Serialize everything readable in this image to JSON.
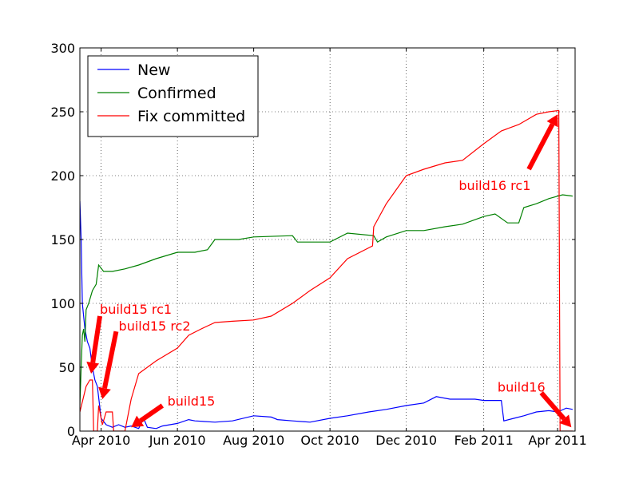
{
  "chart_data": {
    "type": "line",
    "title": "",
    "xlabel": "",
    "ylabel": "",
    "xlim": [
      "2010-03-15",
      "2011-04-15"
    ],
    "ylim": [
      0,
      300
    ],
    "grid": true,
    "legend_position": "top-left",
    "x_ticks": [
      {
        "date": "2010-04-01",
        "label": "Apr 2010"
      },
      {
        "date": "2010-06-01",
        "label": "Jun 2010"
      },
      {
        "date": "2010-08-01",
        "label": "Aug 2010"
      },
      {
        "date": "2010-10-01",
        "label": "Oct 2010"
      },
      {
        "date": "2010-12-01",
        "label": "Dec 2010"
      },
      {
        "date": "2011-02-01",
        "label": "Feb 2011"
      },
      {
        "date": "2011-04-01",
        "label": "Apr 2011"
      }
    ],
    "y_ticks": [
      0,
      50,
      100,
      150,
      200,
      250,
      300
    ],
    "series": [
      {
        "name": "New",
        "color": "#0000ff",
        "points": [
          [
            "2010-03-15",
            180
          ],
          [
            "2010-03-16",
            150
          ],
          [
            "2010-03-17",
            100
          ],
          [
            "2010-03-19",
            80
          ],
          [
            "2010-03-21",
            70
          ],
          [
            "2010-03-23",
            65
          ],
          [
            "2010-03-25",
            50
          ],
          [
            "2010-03-27",
            40
          ],
          [
            "2010-03-29",
            35
          ],
          [
            "2010-04-01",
            10
          ],
          [
            "2010-04-05",
            5
          ],
          [
            "2010-04-10",
            3
          ],
          [
            "2010-04-15",
            5
          ],
          [
            "2010-04-20",
            3
          ],
          [
            "2010-04-25",
            4
          ],
          [
            "2010-05-01",
            2
          ],
          [
            "2010-05-05",
            10
          ],
          [
            "2010-05-08",
            3
          ],
          [
            "2010-05-15",
            2
          ],
          [
            "2010-05-20",
            4
          ],
          [
            "2010-06-01",
            6
          ],
          [
            "2010-06-10",
            9
          ],
          [
            "2010-06-15",
            8
          ],
          [
            "2010-07-01",
            7
          ],
          [
            "2010-07-15",
            8
          ],
          [
            "2010-08-01",
            12
          ],
          [
            "2010-08-15",
            11
          ],
          [
            "2010-08-20",
            9
          ],
          [
            "2010-09-01",
            8
          ],
          [
            "2010-09-15",
            7
          ],
          [
            "2010-10-01",
            10
          ],
          [
            "2010-10-15",
            12
          ],
          [
            "2010-11-01",
            15
          ],
          [
            "2010-11-15",
            17
          ],
          [
            "2010-12-01",
            20
          ],
          [
            "2010-12-15",
            22
          ],
          [
            "2010-12-25",
            27
          ],
          [
            "2011-01-05",
            25
          ],
          [
            "2011-01-15",
            25
          ],
          [
            "2011-01-25",
            25
          ],
          [
            "2011-02-01",
            24
          ],
          [
            "2011-02-15",
            24
          ],
          [
            "2011-02-17",
            8
          ],
          [
            "2011-02-25",
            10
          ],
          [
            "2011-03-05",
            12
          ],
          [
            "2011-03-15",
            15
          ],
          [
            "2011-03-25",
            16
          ],
          [
            "2011-04-01",
            15
          ],
          [
            "2011-04-08",
            18
          ],
          [
            "2011-04-13",
            17
          ]
        ]
      },
      {
        "name": "Confirmed",
        "color": "#008000",
        "points": [
          [
            "2010-03-15",
            20
          ],
          [
            "2010-03-16",
            50
          ],
          [
            "2010-03-17",
            75
          ],
          [
            "2010-03-18",
            80
          ],
          [
            "2010-03-19",
            70
          ],
          [
            "2010-03-20",
            95
          ],
          [
            "2010-03-22",
            100
          ],
          [
            "2010-03-25",
            110
          ],
          [
            "2010-03-28",
            115
          ],
          [
            "2010-03-30",
            130
          ],
          [
            "2010-04-03",
            125
          ],
          [
            "2010-04-10",
            125
          ],
          [
            "2010-04-20",
            127
          ],
          [
            "2010-05-01",
            130
          ],
          [
            "2010-05-15",
            135
          ],
          [
            "2010-06-01",
            140
          ],
          [
            "2010-06-15",
            140
          ],
          [
            "2010-06-25",
            142
          ],
          [
            "2010-07-01",
            150
          ],
          [
            "2010-07-20",
            150
          ],
          [
            "2010-08-01",
            152
          ],
          [
            "2010-09-01",
            153
          ],
          [
            "2010-09-05",
            148
          ],
          [
            "2010-09-15",
            148
          ],
          [
            "2010-10-01",
            148
          ],
          [
            "2010-10-15",
            155
          ],
          [
            "2010-11-05",
            153
          ],
          [
            "2010-11-08",
            148
          ],
          [
            "2010-11-15",
            152
          ],
          [
            "2010-12-01",
            157
          ],
          [
            "2010-12-15",
            157
          ],
          [
            "2011-01-01",
            160
          ],
          [
            "2011-01-15",
            162
          ],
          [
            "2011-02-01",
            168
          ],
          [
            "2011-02-10",
            170
          ],
          [
            "2011-02-20",
            163
          ],
          [
            "2011-03-01",
            163
          ],
          [
            "2011-03-05",
            175
          ],
          [
            "2011-03-15",
            178
          ],
          [
            "2011-03-25",
            182
          ],
          [
            "2011-04-05",
            185
          ],
          [
            "2011-04-13",
            184
          ]
        ]
      },
      {
        "name": "Fix committed",
        "color": "#ff0000",
        "points": [
          [
            "2010-03-15",
            15
          ],
          [
            "2010-03-20",
            35
          ],
          [
            "2010-03-23",
            40
          ],
          [
            "2010-03-25",
            40
          ],
          [
            "2010-03-26",
            0
          ],
          [
            "2010-03-29",
            0
          ],
          [
            "2010-03-30",
            20
          ],
          [
            "2010-04-02",
            5
          ],
          [
            "2010-04-05",
            15
          ],
          [
            "2010-04-10",
            15
          ],
          [
            "2010-04-11",
            0
          ],
          [
            "2010-04-20",
            0
          ],
          [
            "2010-04-25",
            25
          ],
          [
            "2010-05-01",
            45
          ],
          [
            "2010-05-15",
            55
          ],
          [
            "2010-06-01",
            65
          ],
          [
            "2010-06-10",
            75
          ],
          [
            "2010-06-20",
            80
          ],
          [
            "2010-07-01",
            85
          ],
          [
            "2010-07-15",
            86
          ],
          [
            "2010-08-01",
            87
          ],
          [
            "2010-08-15",
            90
          ],
          [
            "2010-09-01",
            100
          ],
          [
            "2010-09-15",
            110
          ],
          [
            "2010-10-01",
            120
          ],
          [
            "2010-10-15",
            135
          ],
          [
            "2010-11-04",
            145
          ],
          [
            "2010-11-05",
            160
          ],
          [
            "2010-11-15",
            178
          ],
          [
            "2010-12-01",
            200
          ],
          [
            "2010-12-15",
            205
          ],
          [
            "2011-01-01",
            210
          ],
          [
            "2011-01-15",
            212
          ],
          [
            "2011-02-01",
            225
          ],
          [
            "2011-02-15",
            235
          ],
          [
            "2011-03-01",
            240
          ],
          [
            "2011-03-15",
            248
          ],
          [
            "2011-03-25",
            250
          ],
          [
            "2011-04-02",
            251
          ],
          [
            "2011-04-03",
            0
          ],
          [
            "2011-04-13",
            0
          ]
        ]
      }
    ],
    "annotations": [
      {
        "text": "build15 rc1",
        "color": "#ff0000",
        "text_at": [
          "2010-03-31",
          95
        ],
        "arrow_from": [
          "2010-03-31",
          90
        ],
        "arrow_to": [
          "2010-03-24",
          45
        ]
      },
      {
        "text": "build15 rc2",
        "color": "#ff0000",
        "text_at": [
          "2010-04-15",
          82
        ],
        "arrow_from": [
          "2010-04-13",
          78
        ],
        "arrow_to": [
          "2010-04-02",
          25
        ]
      },
      {
        "text": "build15",
        "color": "#ff0000",
        "text_at": [
          "2010-05-24",
          23
        ],
        "arrow_from": [
          "2010-05-20",
          20
        ],
        "arrow_to": [
          "2010-04-25",
          3
        ]
      },
      {
        "text": "build16 rc1",
        "color": "#ff0000",
        "text_at": [
          "2011-01-12",
          192
        ],
        "arrow_from": [
          "2011-03-09",
          205
        ],
        "arrow_to": [
          "2011-04-01",
          248
        ]
      },
      {
        "text": "build16",
        "color": "#ff0000",
        "text_at": [
          "2011-02-12",
          34
        ],
        "arrow_from": [
          "2011-03-19",
          30
        ],
        "arrow_to": [
          "2011-04-12",
          3
        ]
      }
    ]
  }
}
